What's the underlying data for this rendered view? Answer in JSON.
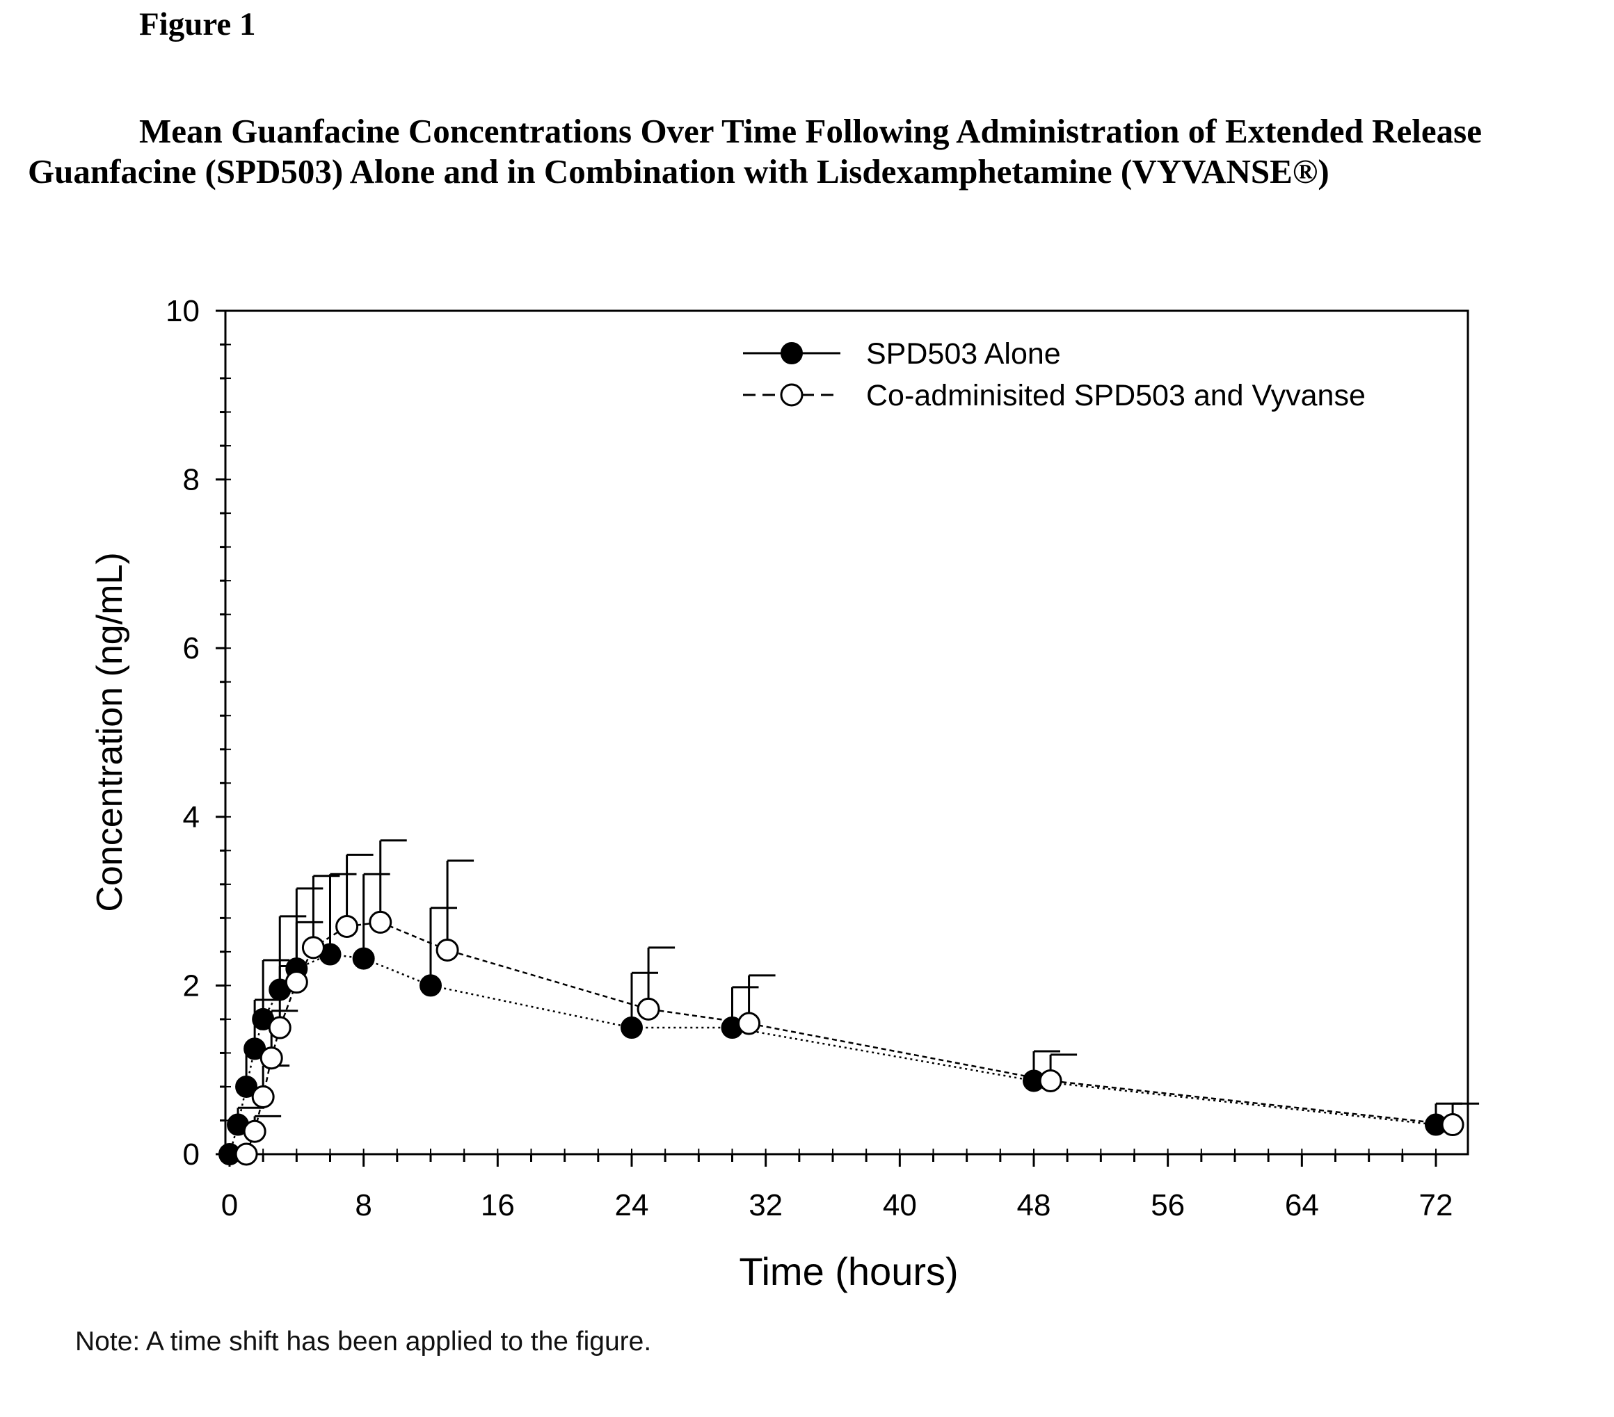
{
  "figure": {
    "label": "Figure 1",
    "caption": "Mean Guanfacine Concentrations Over Time Following Administration of Extended Release Guanfacine (SPD503) Alone and in Combination with Lisdexamphetamine (VYVANSE®)",
    "note": "Note:  A time shift has been applied to the figure."
  },
  "chart_data": {
    "type": "line",
    "title": "",
    "xlabel": "Time (hours)",
    "ylabel": "Concentration (ng/mL)",
    "xlim": [
      0,
      74
    ],
    "ylim": [
      0,
      10
    ],
    "xticks": [
      0,
      8,
      16,
      24,
      32,
      40,
      48,
      56,
      64,
      72
    ],
    "yticks": [
      0,
      2,
      4,
      6,
      8,
      10
    ],
    "grid": false,
    "legend_position": "top-right",
    "error_bars": "upper standard deviation",
    "series": [
      {
        "name": "SPD503 Alone",
        "marker": "filled-circle",
        "line_style": "dotted",
        "color": "#000000",
        "x": [
          0,
          0.5,
          1,
          1.5,
          2,
          3,
          4,
          6,
          8,
          12,
          24,
          30,
          48,
          72
        ],
        "y": [
          0.0,
          0.35,
          0.8,
          1.25,
          1.6,
          1.95,
          2.2,
          2.37,
          2.32,
          2.0,
          1.5,
          1.5,
          0.87,
          0.35
        ],
        "error_upper": [
          0.0,
          0.55,
          1.2,
          1.83,
          2.3,
          2.82,
          3.15,
          3.32,
          3.32,
          2.92,
          2.15,
          1.98,
          1.22,
          0.6
        ]
      },
      {
        "name": "Co-adminisited SPD503 and Vyvanse",
        "marker": "open-circle",
        "line_style": "dotted",
        "color": "#000000",
        "x": [
          1,
          1.5,
          2,
          2.5,
          3,
          4,
          5,
          7,
          9,
          13,
          25,
          31,
          49,
          73
        ],
        "y": [
          0.0,
          0.27,
          0.68,
          1.14,
          1.5,
          2.04,
          2.45,
          2.7,
          2.75,
          2.42,
          1.72,
          1.55,
          0.87,
          0.35
        ],
        "error_upper": [
          0.0,
          0.45,
          1.05,
          1.7,
          2.23,
          2.75,
          3.3,
          3.55,
          3.72,
          3.48,
          2.45,
          2.12,
          1.18,
          0.6
        ]
      }
    ]
  }
}
